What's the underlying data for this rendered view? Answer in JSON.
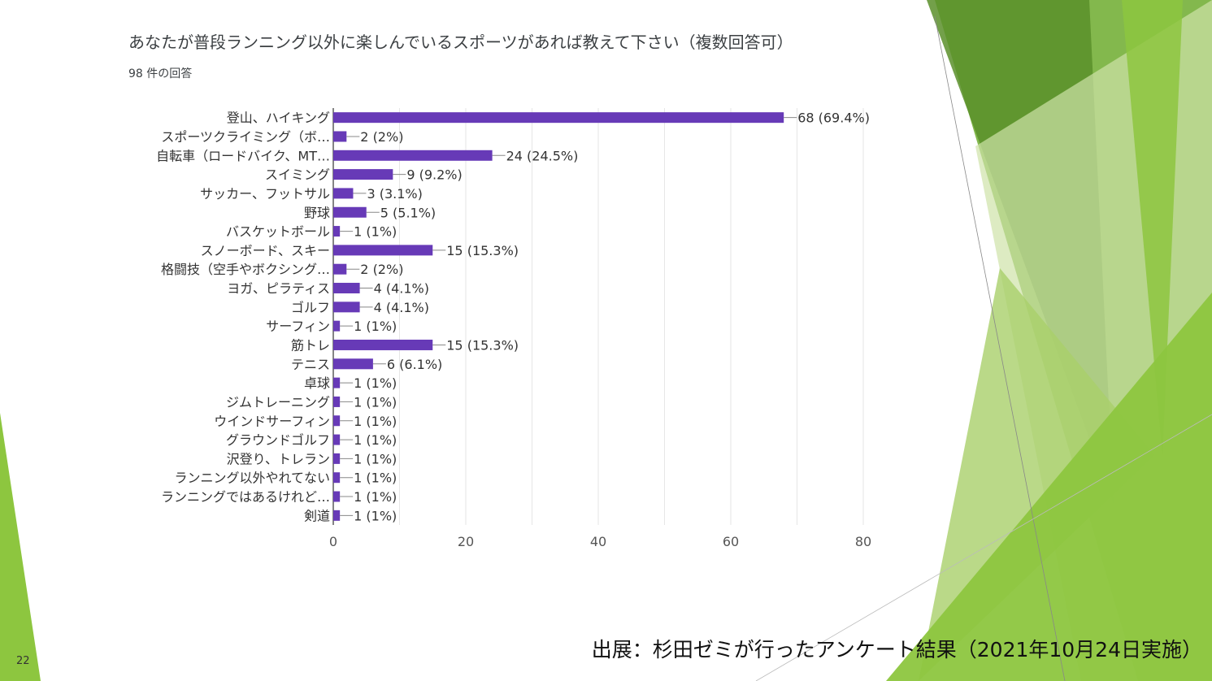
{
  "slide": {
    "number": "22",
    "source_note": "出展：杉田ゼミが行ったアンケート結果（2021年10月24日実施）"
  },
  "colors": {
    "bar": "#673ab7",
    "accent_green": "#8dc63f",
    "dark_green": "#5b8f2a"
  },
  "chart_data": {
    "type": "bar",
    "orientation": "horizontal",
    "title": "あなたが普段ランニング以外に楽しんでいるスポーツがあれば教えて下さい（複数回答可）",
    "subtitle": "98 件の回答",
    "categories": [
      "登山、ハイキング",
      "スポーツクライミング（ボ…",
      "自転車（ロードバイク、MT…",
      "スイミング",
      "サッカー、フットサル",
      "野球",
      "バスケットボール",
      "スノーボード、スキー",
      "格闘技（空手やボクシング…",
      "ヨガ、ピラティス",
      "ゴルフ",
      "サーフィン",
      "筋トレ",
      "テニス",
      "卓球",
      "ジムトレーニング",
      "ウインドサーフィン",
      "グラウンドゴルフ",
      "沢登り、トレラン",
      "ランニング以外やれてない",
      "ランニングではあるけれど…",
      "剣道"
    ],
    "values": [
      68,
      2,
      24,
      9,
      3,
      5,
      1,
      15,
      2,
      4,
      4,
      1,
      15,
      6,
      1,
      1,
      1,
      1,
      1,
      1,
      1,
      1
    ],
    "data_labels": [
      "68 (69.4%)",
      "2 (2%)",
      "24 (24.5%)",
      "9 (9.2%)",
      "3 (3.1%)",
      "5 (5.1%)",
      "1 (1%)",
      "15 (15.3%)",
      "2 (2%)",
      "4 (4.1%)",
      "4 (4.1%)",
      "1 (1%)",
      "15 (15.3%)",
      "6 (6.1%)",
      "1 (1%)",
      "1 (1%)",
      "1 (1%)",
      "1 (1%)",
      "1 (1%)",
      "1 (1%)",
      "1 (1%)",
      "1 (1%)"
    ],
    "xlim": [
      0,
      80
    ],
    "xticks": [
      0,
      20,
      40,
      60,
      80
    ],
    "grid": true
  }
}
